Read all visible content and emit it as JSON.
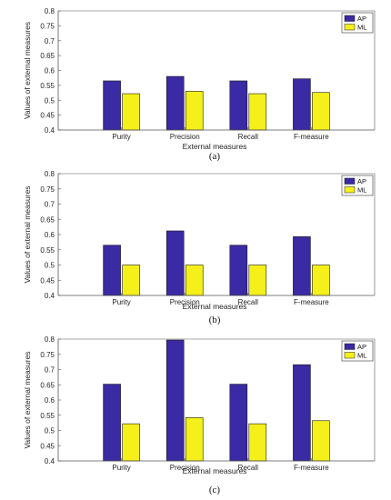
{
  "chart_data": [
    {
      "type": "bar",
      "caption": "(a)",
      "categories": [
        "Purity",
        "Precision",
        "Recall",
        "F-measure"
      ],
      "series": [
        {
          "name": "AP",
          "values": [
            0.565,
            0.58,
            0.565,
            0.572
          ]
        },
        {
          "name": "ML",
          "values": [
            0.522,
            0.53,
            0.522,
            0.526
          ]
        }
      ],
      "xlabel": "External measures",
      "ylabel": "Values of external measures",
      "ylim": [
        0.4,
        0.8
      ],
      "yticks": [
        "0.4",
        "0.45",
        "0.5",
        "0.55",
        "0.6",
        "0.65",
        "0.7",
        "0.75",
        "0.8"
      ],
      "legend_position": "top-right",
      "grid": false
    },
    {
      "type": "bar",
      "caption": "(b)",
      "categories": [
        "Purity",
        "Precision",
        "Recall",
        "F-measure"
      ],
      "series": [
        {
          "name": "AP",
          "values": [
            0.565,
            0.612,
            0.565,
            0.593
          ]
        },
        {
          "name": "ML",
          "values": [
            0.5,
            0.5,
            0.5,
            0.5
          ]
        }
      ],
      "xlabel": "External measures",
      "ylabel": "Values of external measures",
      "ylim": [
        0.4,
        0.8
      ],
      "yticks": [
        "0.4",
        "0.45",
        "0.5",
        "0.55",
        "0.6",
        "0.65",
        "0.7",
        "0.75",
        "0.8"
      ],
      "legend_position": "top-right",
      "grid": false
    },
    {
      "type": "bar",
      "caption": "(c)",
      "categories": [
        "Purity",
        "Precision",
        "Recall",
        "F-measure"
      ],
      "series": [
        {
          "name": "AP",
          "values": [
            0.652,
            0.797,
            0.652,
            0.716
          ]
        },
        {
          "name": "ML",
          "values": [
            0.522,
            0.542,
            0.522,
            0.532
          ]
        }
      ],
      "xlabel": "External measures",
      "ylabel": "Values of external measures",
      "ylim": [
        0.4,
        0.8
      ],
      "yticks": [
        "0.4",
        "0.45",
        "0.5",
        "0.55",
        "0.6",
        "0.65",
        "0.7",
        "0.75",
        "0.8"
      ],
      "legend_position": "top-right",
      "grid": false
    }
  ],
  "colors": {
    "AP": "#3a2aa3",
    "ML": "#f5f019",
    "axis": "#555555",
    "edge": "#1a1a1a"
  }
}
